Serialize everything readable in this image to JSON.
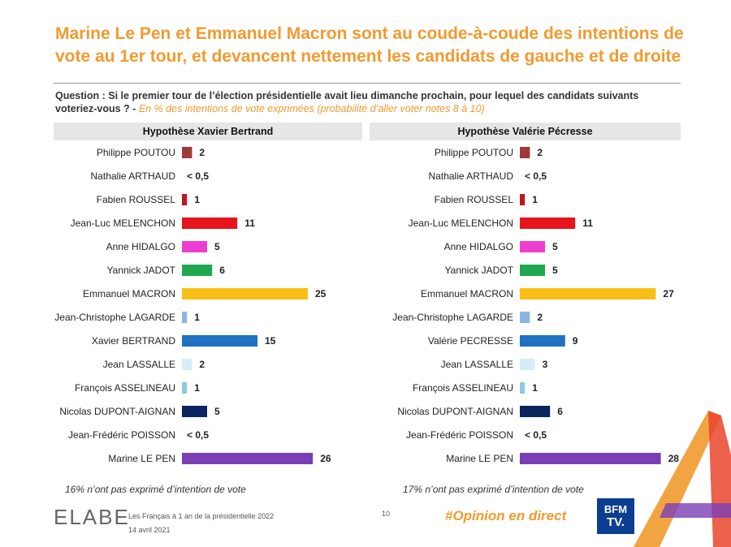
{
  "title": "Marine Le Pen et Emmanuel Macron sont au coude-à-coude des intentions de vote au 1er tour, et devancent nettement les candidats de gauche et de droite",
  "question": {
    "label": "Question : Si le premier tour de l’élection présidentielle avait lieu dimanche prochain, pour lequel des candidats suivants voteriez-vous ? -",
    "note": "En % des intentions de vote exprimées (probabilité d’aller voter notes 8 à 10)"
  },
  "colors": {
    "title": "#F29A2E",
    "poutou": "#9E3A3A",
    "roussel": "#C0171F",
    "melenchon": "#E8141C",
    "hidalgo": "#EE3ED1",
    "jadot": "#1FA84F",
    "macron": "#F9BE15",
    "lagarde": "#8EB5E0",
    "lr": "#1F71C2",
    "lassalle": "#D7EDF5",
    "asselineau": "#8FC9E0",
    "dupont": "#0B2460",
    "lepen": "#7B3FB5"
  },
  "chart_data": [
    {
      "type": "bar",
      "title": "Hypothèse Xavier Bertrand",
      "categories": [
        "Philippe POUTOU",
        "Nathalie ARTHAUD",
        "Fabien ROUSSEL",
        "Jean-Luc MELENCHON",
        "Anne HIDALGO",
        "Yannick JADOT",
        "Emmanuel MACRON",
        "Jean-Christophe LAGARDE",
        "Xavier BERTRAND",
        "Jean LASSALLE",
        "François ASSELINEAU",
        "Nicolas DUPONT-AIGNAN",
        "Jean-Frédéric POISSON",
        "Marine LE PEN"
      ],
      "values": [
        2,
        0,
        1,
        11,
        5,
        6,
        25,
        1,
        15,
        2,
        1,
        5,
        0,
        26
      ],
      "labels": [
        "2",
        "< 0,5",
        "1",
        "11",
        "5",
        "6",
        "25",
        "1",
        "15",
        "2",
        "1",
        "5",
        "< 0,5",
        "26"
      ],
      "color_keys": [
        "poutou",
        "",
        "roussel",
        "melenchon",
        "hidalgo",
        "jadot",
        "macron",
        "lagarde",
        "lr",
        "lassalle",
        "asselineau",
        "dupont",
        "",
        "lepen"
      ],
      "unit": "%",
      "footnote": "16% n’ont pas exprimé d’intention de vote"
    },
    {
      "type": "bar",
      "title": "Hypothèse Valérie Pécresse",
      "categories": [
        "Philippe POUTOU",
        "Nathalie ARTHAUD",
        "Fabien ROUSSEL",
        "Jean-Luc MELENCHON",
        "Anne HIDALGO",
        "Yannick JADOT",
        "Emmanuel MACRON",
        "Jean-Christophe LAGARDE",
        "Valérie PECRESSE",
        "Jean LASSALLE",
        "François ASSELINEAU",
        "Nicolas DUPONT-AIGNAN",
        "Jean-Frédéric POISSON",
        "Marine LE PEN"
      ],
      "values": [
        2,
        0,
        1,
        11,
        5,
        5,
        27,
        2,
        9,
        3,
        1,
        6,
        0,
        28
      ],
      "labels": [
        "2",
        "< 0,5",
        "1",
        "11",
        "5",
        "5",
        "27",
        "2",
        "9",
        "3",
        "1",
        "6",
        "< 0,5",
        "28"
      ],
      "color_keys": [
        "poutou",
        "",
        "roussel",
        "melenchon",
        "hidalgo",
        "jadot",
        "macron",
        "lagarde",
        "lr",
        "lassalle",
        "asselineau",
        "dupont",
        "",
        "lepen"
      ],
      "unit": "%",
      "footnote": "17% n’ont pas exprimé d’intention de vote"
    }
  ],
  "footer": {
    "brand": "ELABE",
    "subtitle": "Les Français à 1 an de la présidentielle 2022",
    "date": "14 avril 2021",
    "page": "10",
    "hashtag": "#Opinion en direct",
    "channel_top": "BFM",
    "channel_bottom": "TV."
  }
}
